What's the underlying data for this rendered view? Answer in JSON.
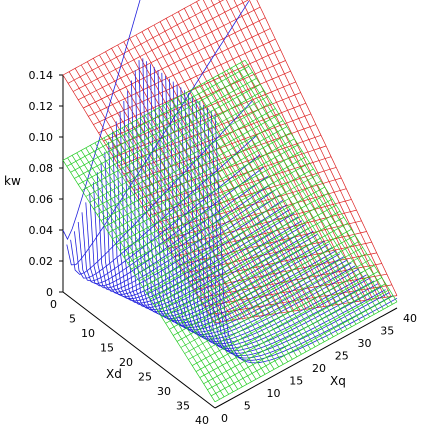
{
  "chart_data": {
    "type": "surface3d",
    "title": "",
    "xlabel": "Xd",
    "ylabel": "Xq",
    "zlabel": "kw",
    "x_ticks": [
      "0",
      "5",
      "10",
      "15",
      "20",
      "25",
      "30",
      "35",
      "40"
    ],
    "y_ticks": [
      "0",
      "5",
      "10",
      "15",
      "20",
      "25",
      "30",
      "35",
      "40"
    ],
    "z_ticks": [
      "0",
      "0.02",
      "0.04",
      "0.06",
      "0.08",
      "0.10",
      "0.12",
      "0.14"
    ],
    "xlim": [
      0,
      40
    ],
    "ylim": [
      0,
      40
    ],
    "zlim": [
      0,
      0.14
    ],
    "grid": false,
    "legend": "none",
    "series": [
      {
        "color": "#dd2222",
        "style": "mesh",
        "corner_values": {
          "x0_y0": 0.14,
          "x40_y0": 0.055,
          "x0_y40": 0.14,
          "x40_y40": 0.008
        }
      },
      {
        "color": "#22cc22",
        "style": "mesh",
        "corner_values": {
          "x0_y0": 0.085,
          "x40_y0": 0.004,
          "x0_y40": 0.085,
          "x40_y40": 0.004
        }
      },
      {
        "color": "#2222dd",
        "style": "curves",
        "peak_value": 0.19,
        "min_value": 0.0
      }
    ]
  }
}
